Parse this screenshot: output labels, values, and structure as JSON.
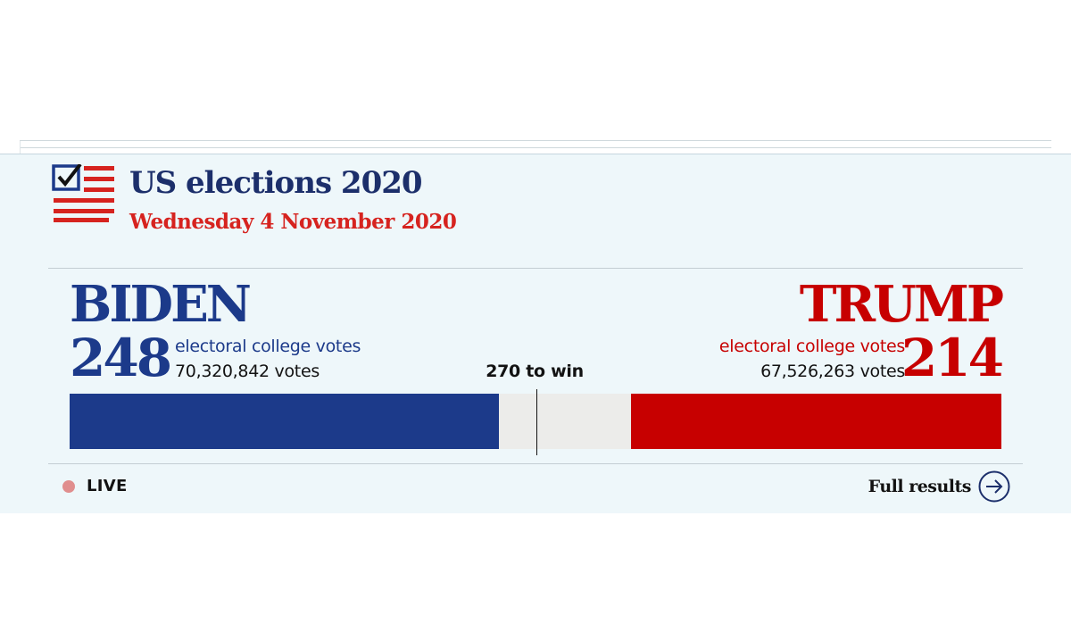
{
  "header": {
    "title": "US elections 2020",
    "date": "Wednesday 4 November 2020",
    "logo_icon": "ballot-checkbox-flag-icon"
  },
  "colors": {
    "democrat": "#1c3a8a",
    "republican": "#c70000",
    "date_red": "#d6231f",
    "uncalled": "#ececea",
    "panel_bg": "#eef7fa"
  },
  "race": {
    "total_electoral_votes": 538,
    "to_win_value": 270,
    "to_win_label": "270 to win",
    "biden": {
      "name": "BIDEN",
      "electoral_votes": "248",
      "electoral_votes_value": 248,
      "ev_label": "electoral college votes",
      "popular_votes": "70,320,842 votes"
    },
    "trump": {
      "name": "TRUMP",
      "electoral_votes": "214",
      "electoral_votes_value": 214,
      "ev_label": "electoral college votes",
      "popular_votes": "67,526,263 votes"
    }
  },
  "footer": {
    "live_label": "LIVE",
    "full_results_label": "Full results",
    "full_results_icon": "arrow-right-circle-icon"
  }
}
